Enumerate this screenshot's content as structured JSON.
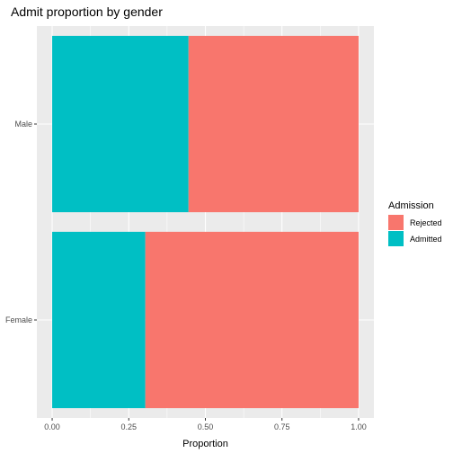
{
  "chart_data": {
    "type": "bar",
    "orientation": "horizontal",
    "stacked": true,
    "title": "Admit proportion by gender",
    "xlabel": "Proportion",
    "ylabel": "",
    "categories": [
      "Male",
      "Female"
    ],
    "series": [
      {
        "name": "Admitted",
        "values": [
          0.445,
          0.304
        ],
        "color": "#00BFC4"
      },
      {
        "name": "Rejected",
        "values": [
          0.555,
          0.696
        ],
        "color": "#F8766D"
      }
    ],
    "xlim": [
      -0.05,
      1.05
    ],
    "xticks": [
      0,
      0.25,
      0.5,
      0.75,
      1
    ],
    "xtick_labels": [
      "0.00",
      "0.25",
      "0.50",
      "0.75",
      "1.00"
    ],
    "grid": true,
    "legend": {
      "title": "Admission",
      "position": "right",
      "entries": [
        {
          "label": "Rejected",
          "color": "#F8766D"
        },
        {
          "label": "Admitted",
          "color": "#00BFC4"
        }
      ]
    },
    "panel_color": "#EBEBEB",
    "grid_color": "#FFFFFF"
  }
}
